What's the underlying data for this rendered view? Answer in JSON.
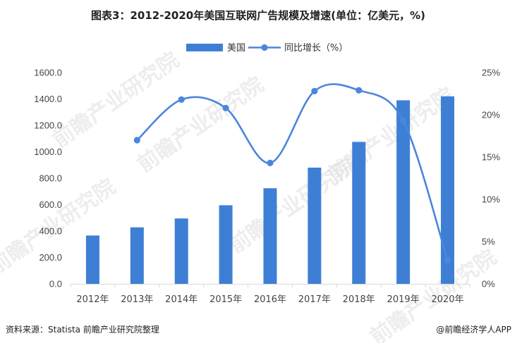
{
  "page": {
    "title": "图表3：2012-2020年美国互联网广告规模及增速(单位：亿美元，%)",
    "source": "资料来源：Statista 前瞻产业研究院整理",
    "brand": "@前瞻经济学人APP",
    "watermark": "前瞻产业研究院"
  },
  "colors": {
    "bar": "#3e7fd6",
    "line": "#4a86dc",
    "gridline": "#d9d9d9"
  },
  "chart_data": {
    "type": "bar",
    "title": "图表3：2012-2020年美国互联网广告规模及增速(单位：亿美元，%)",
    "categories": [
      "2012年",
      "2013年",
      "2014年",
      "2015年",
      "2016年",
      "2017年",
      "2018年",
      "2019年",
      "2020年"
    ],
    "series": [
      {
        "name": "美国",
        "type": "bar",
        "axis": "left",
        "values": [
          366.0,
          428.0,
          495.0,
          595.0,
          724.0,
          880.0,
          1075.0,
          1390.0,
          1420.0
        ]
      },
      {
        "name": "同比增长（%）",
        "type": "line",
        "axis": "right",
        "smooth": true,
        "values": [
          null,
          17.0,
          21.8,
          20.8,
          14.3,
          22.8,
          22.9,
          19.3,
          2.8
        ]
      }
    ],
    "y_left": {
      "ylim": [
        0,
        1600
      ],
      "ticks": [
        0,
        200,
        400,
        600,
        800,
        1000,
        1200,
        1400,
        1600
      ],
      "tick_labels": [
        "0.0",
        "200.0",
        "400.0",
        "600.0",
        "800.0",
        "1000.0",
        "1200.0",
        "1400.0",
        "1600.0"
      ]
    },
    "y_right": {
      "ylim": [
        0,
        25
      ],
      "ticks": [
        0,
        5,
        10,
        15,
        20,
        25
      ],
      "tick_labels": [
        "0%",
        "5%",
        "10%",
        "15%",
        "20%",
        "25%"
      ]
    },
    "legend": {
      "position": "top-center",
      "entries": [
        "美国",
        "同比增长（%）"
      ]
    },
    "grid": false
  }
}
